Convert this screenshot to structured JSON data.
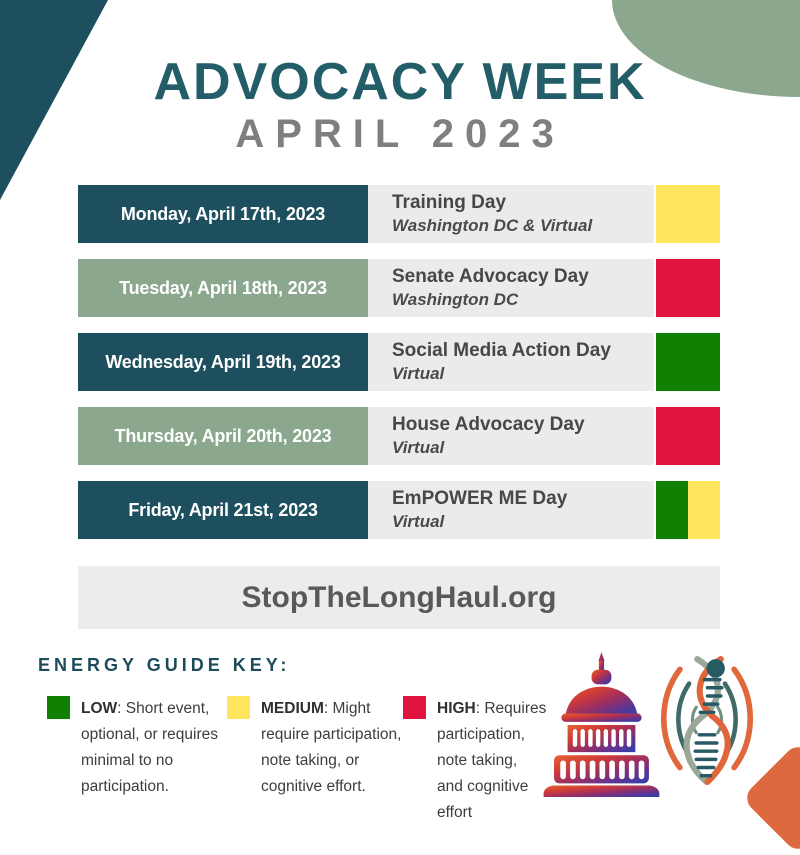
{
  "poster": {
    "title": "ADVOCACY WEEK",
    "subtitle": "APRIL 2023",
    "website": "StopTheLongHaul.org"
  },
  "schedule": {
    "rows": [
      {
        "date": "Monday, April 17th, 2023",
        "event": "Training Day",
        "location": "Washington DC & Virtual",
        "date_style": "teal",
        "energy": [
          "medium"
        ]
      },
      {
        "date": "Tuesday, April 18th, 2023",
        "event": "Senate Advocacy Day",
        "location": "Washington DC",
        "date_style": "sage",
        "energy": [
          "high"
        ]
      },
      {
        "date": "Wednesday, April 19th, 2023",
        "event": "Social Media Action Day",
        "location": "Virtual",
        "date_style": "teal",
        "energy": [
          "low"
        ]
      },
      {
        "date": "Thursday, April 20th, 2023",
        "event": "House Advocacy Day",
        "location": "Virtual",
        "date_style": "sage",
        "energy": [
          "high"
        ]
      },
      {
        "date": "Friday, April 21st, 2023",
        "event": "EmPOWER ME Day",
        "location": "Virtual",
        "date_style": "teal",
        "energy": [
          "low",
          "medium"
        ]
      }
    ]
  },
  "energy_key": {
    "title": "ENERGY GUIDE KEY:",
    "items": [
      {
        "level": "LOW",
        "energy": "low",
        "description": "Short event, optional, or requires minimal to no participation."
      },
      {
        "level": "MEDIUM",
        "energy": "medium",
        "description": "Might require participation, note taking, or cognitive effort."
      },
      {
        "level": "HIGH",
        "energy": "high",
        "description": "Requires participation, note taking, and cognitive effort"
      }
    ]
  },
  "energy_colors": {
    "low": "#0f8002",
    "medium": "#ffe45e",
    "high": "#e0143e"
  },
  "colors": {
    "teal": "#1e4f5e",
    "sage": "#8ba78e",
    "title_teal": "#235e68",
    "subtitle_gray": "#7f7f7f",
    "row_gray": "#ebebeb",
    "banner_gray": "#ececec",
    "orange_accent": "#dd6a3f"
  },
  "icons": [
    "capitol-building-icon",
    "dna-helix-logo"
  ]
}
